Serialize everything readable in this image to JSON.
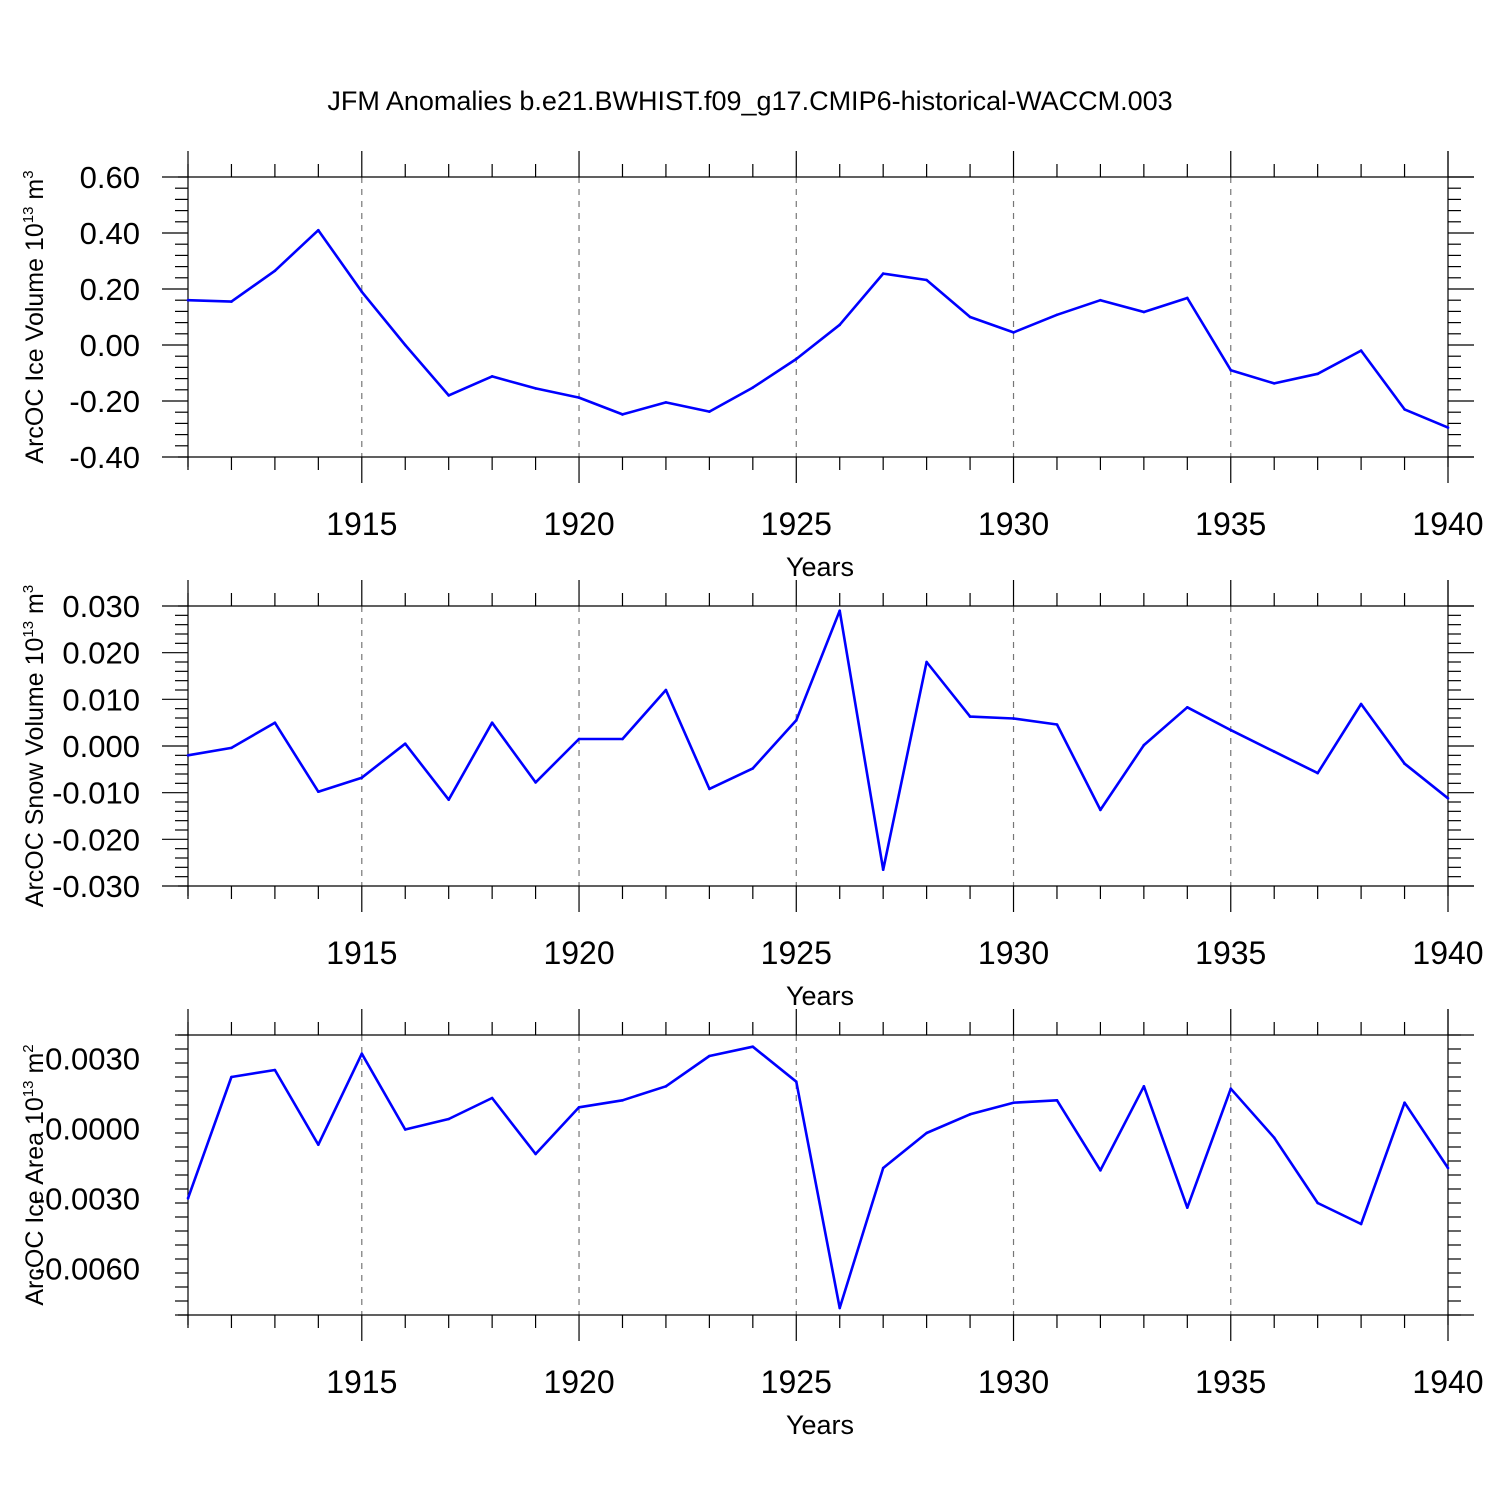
{
  "title": "JFM Anomalies b.e21.BWHIST.f09_g17.CMIP6-historical-WACCM.003",
  "chart_data": [
    {
      "type": "line",
      "xlabel": "Years",
      "ylabel": {
        "text": "ArcOC Ice Volume 10",
        "sup": "13",
        "unit": " m",
        "unit_sup": "3"
      },
      "xlim": [
        1911,
        1940
      ],
      "ylim": [
        -0.4,
        0.6
      ],
      "xticks": [
        1915,
        1920,
        1925,
        1930,
        1935,
        1940
      ],
      "xtick_labels": [
        "1915",
        "1920",
        "1925",
        "1930",
        "1935",
        "1940"
      ],
      "yticks": [
        -0.4,
        -0.2,
        0.0,
        0.2,
        0.4,
        0.6
      ],
      "ytick_labels": [
        "-0.40",
        "-0.20",
        "0.00",
        "0.20",
        "0.40",
        "0.60"
      ],
      "grid": "vertical dashed at major x ticks",
      "color": "#0000ff",
      "x": [
        1911,
        1912,
        1913,
        1914,
        1915,
        1916,
        1917,
        1918,
        1919,
        1920,
        1921,
        1922,
        1923,
        1924,
        1925,
        1926,
        1927,
        1928,
        1929,
        1930,
        1931,
        1932,
        1933,
        1934,
        1935,
        1936,
        1937,
        1938,
        1939,
        1940
      ],
      "y": [
        0.16,
        0.155,
        0.265,
        0.41,
        0.19,
        0.0,
        -0.18,
        -0.112,
        -0.155,
        -0.188,
        -0.248,
        -0.205,
        -0.238,
        -0.152,
        -0.05,
        0.072,
        0.255,
        0.232,
        0.1,
        0.045,
        0.108,
        0.16,
        0.118,
        0.168,
        -0.09,
        -0.137,
        -0.103,
        -0.02,
        -0.23,
        -0.295
      ]
    },
    {
      "type": "line",
      "xlabel": "Years",
      "ylabel": {
        "text": "ArcOC Snow Volume 10",
        "sup": "13",
        "unit": " m",
        "unit_sup": "3"
      },
      "xlim": [
        1911,
        1940
      ],
      "ylim": [
        -0.03,
        0.03
      ],
      "xticks": [
        1915,
        1920,
        1925,
        1930,
        1935,
        1940
      ],
      "xtick_labels": [
        "1915",
        "1920",
        "1925",
        "1930",
        "1935",
        "1940"
      ],
      "yticks": [
        -0.03,
        -0.02,
        -0.01,
        0.0,
        0.01,
        0.02,
        0.03
      ],
      "ytick_labels": [
        "-0.030",
        "-0.020",
        "-0.010",
        "0.000",
        "0.010",
        "0.020",
        "0.030"
      ],
      "grid": "vertical dashed at major x ticks",
      "color": "#0000ff",
      "x": [
        1911,
        1912,
        1913,
        1914,
        1915,
        1916,
        1917,
        1918,
        1919,
        1920,
        1921,
        1922,
        1923,
        1924,
        1925,
        1926,
        1927,
        1928,
        1929,
        1930,
        1931,
        1932,
        1933,
        1934,
        1935,
        1936,
        1937,
        1938,
        1939,
        1940
      ],
      "y": [
        -0.002,
        -0.0004,
        0.005,
        -0.0098,
        -0.0068,
        0.0005,
        -0.0115,
        0.005,
        -0.0078,
        0.0015,
        0.0015,
        0.012,
        -0.0092,
        -0.0048,
        0.0055,
        0.029,
        -0.0265,
        0.018,
        0.0063,
        0.0059,
        0.0046,
        -0.0137,
        0.0002,
        0.0083,
        0.0034,
        -0.0012,
        -0.0058,
        0.009,
        -0.0038,
        -0.0112
      ]
    },
    {
      "type": "line",
      "xlabel": "Years",
      "ylabel": {
        "text": "ArcOC Ice Area 10",
        "sup": "13",
        "unit": " m",
        "unit_sup": "2"
      },
      "xlim": [
        1911,
        1940
      ],
      "ylim": [
        -0.008,
        0.004
      ],
      "xticks": [
        1915,
        1920,
        1925,
        1930,
        1935,
        1940
      ],
      "xtick_labels": [
        "1915",
        "1920",
        "1925",
        "1930",
        "1935",
        "1940"
      ],
      "yticks": [
        -0.006,
        -0.003,
        0.0,
        0.003
      ],
      "ytick_labels": [
        "-0.0060",
        "-0.0030",
        "0.0000",
        "0.0030"
      ],
      "grid": "vertical dashed at major x ticks",
      "color": "#0000ff",
      "x": [
        1911,
        1912,
        1913,
        1914,
        1915,
        1916,
        1917,
        1918,
        1919,
        1920,
        1921,
        1922,
        1923,
        1924,
        1925,
        1926,
        1927,
        1928,
        1929,
        1930,
        1931,
        1932,
        1933,
        1934,
        1935,
        1936,
        1937,
        1938,
        1939,
        1940
      ],
      "y": [
        -0.003,
        0.0022,
        0.0025,
        -0.0007,
        0.0032,
        -5e-05,
        0.0004,
        0.0013,
        -0.0011,
        0.0009,
        0.0012,
        0.0018,
        0.0031,
        0.0035,
        0.002,
        -0.0077,
        -0.0017,
        -0.0002,
        0.0006,
        0.0011,
        0.0012,
        -0.0018,
        0.0018,
        -0.0034,
        0.0017,
        -0.0004,
        -0.0032,
        -0.0041,
        0.0011,
        -0.0017
      ]
    }
  ]
}
